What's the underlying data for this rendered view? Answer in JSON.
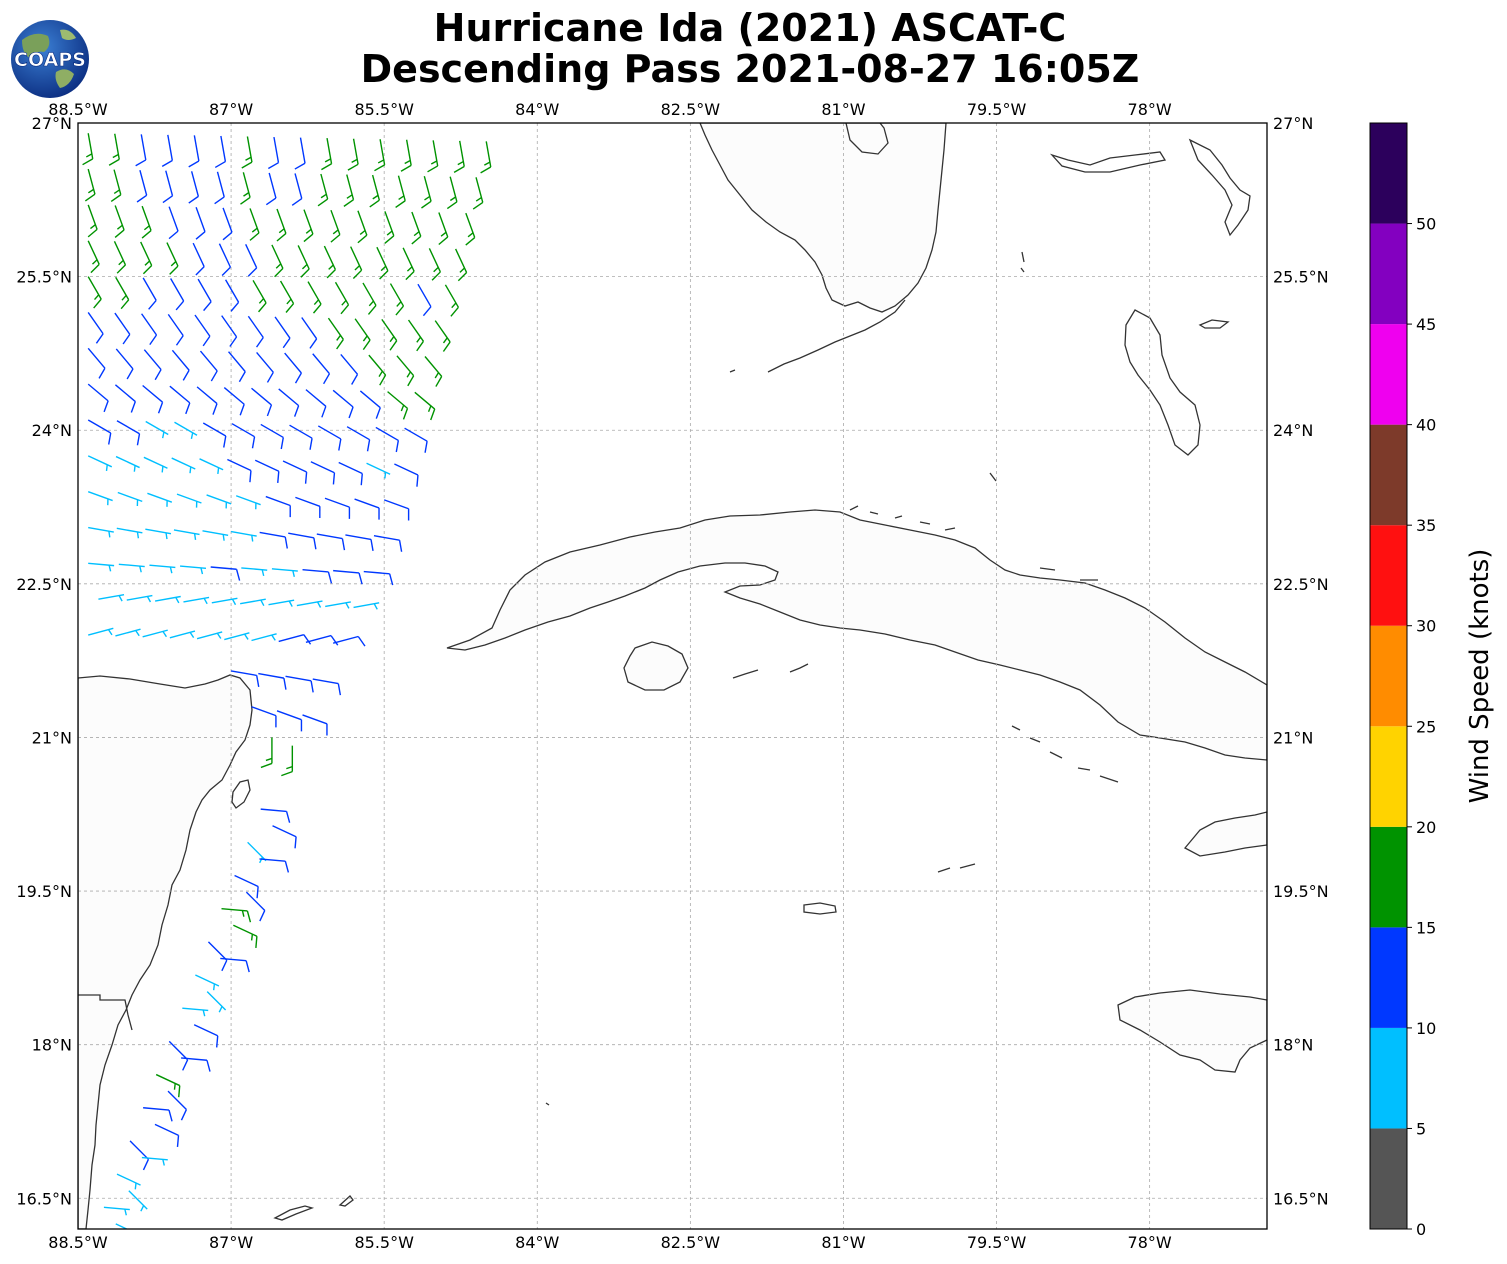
{
  "title": {
    "line1": "Hurricane Ida (2021) ASCAT-C",
    "line2": "Descending Pass 2021-08-27 16:05Z"
  },
  "logo": {
    "text": "COAPS",
    "icon": "globe-logo-icon"
  },
  "map": {
    "lon_range": [
      -88.5,
      -76.85
    ],
    "lat_range": [
      16.2,
      27.0
    ],
    "lon_ticks": [
      "88.5°W",
      "87°W",
      "85.5°W",
      "84°W",
      "82.5°W",
      "81°W",
      "79.5°W",
      "78°W"
    ],
    "lat_ticks": [
      "27°N",
      "25.5°N",
      "24°N",
      "22.5°N",
      "21°N",
      "19.5°N",
      "18°N",
      "16.5°N"
    ],
    "lon_tick_values": [
      -88.5,
      -87,
      -85.5,
      -84,
      -82.5,
      -81,
      -79.5,
      -78
    ],
    "lat_tick_values": [
      27,
      25.5,
      24,
      22.5,
      21,
      19.5,
      18,
      16.5
    ],
    "gridlines": true,
    "features": [
      "Florida",
      "Bahamas",
      "Cuba",
      "Isla de la Juventud",
      "Yucatan Peninsula",
      "Jamaica",
      "Cayman Islands"
    ]
  },
  "wind_barbs": {
    "units": "knots",
    "rows": [
      {
        "lat": 26.9,
        "lon_start": -88.4,
        "lon_end": -84.5,
        "n": 16,
        "speeds": [
          18,
          17,
          13,
          12,
          12,
          14,
          15,
          13,
          13,
          15,
          16,
          17,
          18,
          18,
          19,
          19
        ],
        "dir": 170
      },
      {
        "lat": 26.55,
        "lon_start": -88.4,
        "lon_end": -84.6,
        "n": 16,
        "speeds": [
          17,
          16,
          14,
          13,
          13,
          14,
          15,
          14,
          14,
          15,
          16,
          17,
          17,
          18,
          18,
          18
        ],
        "dir": 165
      },
      {
        "lat": 26.2,
        "lon_start": -88.4,
        "lon_end": -84.7,
        "n": 15,
        "speeds": [
          16,
          16,
          15,
          14,
          13,
          14,
          15,
          15,
          16,
          16,
          16,
          17,
          17,
          18,
          18
        ],
        "dir": 160
      },
      {
        "lat": 25.85,
        "lon_start": -88.4,
        "lon_end": -84.8,
        "n": 15,
        "speeds": [
          16,
          16,
          15,
          15,
          14,
          13,
          14,
          15,
          16,
          16,
          17,
          17,
          17,
          17,
          18
        ],
        "dir": 155
      },
      {
        "lat": 25.5,
        "lon_start": -88.4,
        "lon_end": -84.9,
        "n": 14,
        "speeds": [
          15,
          15,
          14,
          13,
          13,
          14,
          15,
          16,
          16,
          17,
          16,
          15,
          14,
          17
        ],
        "dir": 150
      },
      {
        "lat": 25.15,
        "lon_start": -88.4,
        "lon_end": -85.0,
        "n": 14,
        "speeds": [
          14,
          13,
          13,
          12,
          12,
          13,
          13,
          14,
          14,
          15,
          16,
          16,
          17,
          18
        ],
        "dir": 145
      },
      {
        "lat": 24.8,
        "lon_start": -88.4,
        "lon_end": -85.1,
        "n": 13,
        "speeds": [
          12,
          12,
          11,
          10,
          11,
          12,
          12,
          13,
          13,
          14,
          15,
          17,
          18
        ],
        "dir": 140
      },
      {
        "lat": 24.45,
        "lon_start": -88.4,
        "lon_end": -85.2,
        "n": 13,
        "speeds": [
          11,
          11,
          10,
          10,
          11,
          11,
          12,
          12,
          13,
          13,
          14,
          15,
          17
        ],
        "dir": 130
      },
      {
        "lat": 24.1,
        "lon_start": -88.4,
        "lon_end": -85.3,
        "n": 12,
        "speeds": [
          10,
          10,
          9,
          9,
          10,
          11,
          11,
          12,
          12,
          13,
          13,
          14
        ],
        "dir": 120
      },
      {
        "lat": 23.75,
        "lon_start": -88.4,
        "lon_end": -85.4,
        "n": 12,
        "speeds": [
          9,
          9,
          8,
          8,
          9,
          10,
          11,
          11,
          12,
          12,
          9,
          12
        ],
        "dir": 115
      },
      {
        "lat": 23.4,
        "lon_start": -88.4,
        "lon_end": -85.5,
        "n": 11,
        "speeds": [
          8,
          8,
          7,
          7,
          8,
          9,
          10,
          11,
          11,
          12,
          12
        ],
        "dir": 110
      },
      {
        "lat": 23.05,
        "lon_start": -88.4,
        "lon_end": -85.6,
        "n": 11,
        "speeds": [
          7,
          7,
          6,
          7,
          8,
          9,
          10,
          11,
          11,
          12,
          12
        ],
        "dir": 100
      },
      {
        "lat": 22.7,
        "lon_start": -88.4,
        "lon_end": -85.7,
        "n": 10,
        "speeds": [
          6,
          6,
          6,
          7,
          11,
          8,
          9,
          10,
          11,
          12
        ],
        "dir": 95
      },
      {
        "lat": 22.35,
        "lon_start": -88.3,
        "lon_end": -85.8,
        "n": 10,
        "speeds": [
          6,
          6,
          7,
          7,
          7,
          8,
          8,
          9,
          9,
          8
        ],
        "dir": 80
      },
      {
        "lat": 22.0,
        "lon_start": -88.4,
        "lon_end": -86.0,
        "n": 10,
        "speeds": [
          7,
          7,
          7,
          8,
          8,
          9,
          9,
          10,
          10,
          11
        ],
        "dir": 75
      },
      {
        "lat": 21.65,
        "lon_start": -87.0,
        "lon_end": -86.2,
        "n": 4,
        "speeds": [
          10,
          11,
          11,
          12
        ],
        "dir": 100
      },
      {
        "lat": 21.3,
        "lon_start": -86.8,
        "lon_end": -86.3,
        "n": 3,
        "speeds": [
          12,
          12,
          13
        ],
        "dir": 110
      },
      {
        "lat": 21.0,
        "lon_start": -86.6,
        "lon_end": -86.4,
        "n": 2,
        "speeds": [
          17,
          16
        ],
        "dir": 180
      }
    ],
    "coast_track": {
      "lat_start": 20.3,
      "lat_end": 16.25,
      "lon_start": -86.65,
      "lon_end": -88.25,
      "n": 26,
      "speeds": [
        13,
        12,
        9,
        13,
        11,
        14,
        16,
        17,
        12,
        14,
        9,
        8,
        9,
        10,
        12,
        13,
        16,
        12,
        11,
        13,
        12,
        9,
        7,
        8,
        6,
        6
      ]
    }
  },
  "colorbar": {
    "title": "Wind Speed (knots)",
    "ticks": [
      "0",
      "5",
      "10",
      "15",
      "20",
      "25",
      "30",
      "35",
      "40",
      "45",
      "50"
    ],
    "colors": [
      "#555555",
      "#00bfff",
      "#0038ff",
      "#009300",
      "#ffd300",
      "#ff8c00",
      "#ff1010",
      "#7d3a2a",
      "#ef00ef",
      "#8300c0",
      "#2c005c"
    ]
  }
}
